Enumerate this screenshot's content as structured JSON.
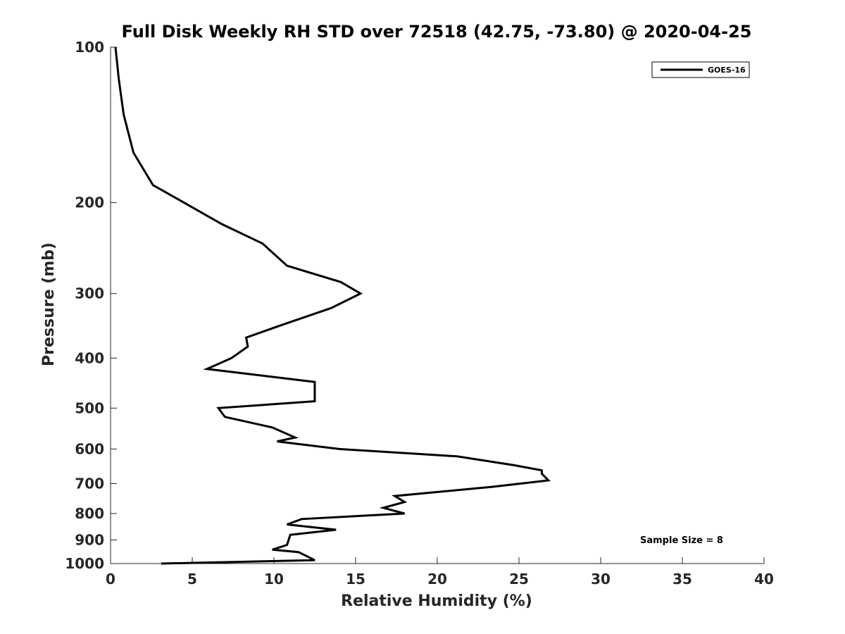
{
  "chart_data": {
    "type": "line",
    "title": "Full Disk Weekly RH STD over 72518 (42.75, -73.80) @ 2020-04-25",
    "xlabel": "Relative Humidity (%)",
    "ylabel": "Pressure (mb)",
    "xlim": [
      0,
      40
    ],
    "ylim": [
      100,
      1000
    ],
    "yscale": "log",
    "reversed_y": true,
    "x_ticks": [
      0,
      5,
      10,
      15,
      20,
      25,
      30,
      35,
      40
    ],
    "y_ticks": [
      100,
      200,
      300,
      400,
      500,
      600,
      700,
      800,
      900,
      1000
    ],
    "grid": false,
    "legend_position": "top-right",
    "annotation": "Sample Size = 8",
    "series": [
      {
        "name": "GOES-16",
        "color": "#000000",
        "points": [
          [
            0.3,
            100
          ],
          [
            0.5,
            115
          ],
          [
            0.8,
            135
          ],
          [
            1.4,
            160
          ],
          [
            2.6,
            185
          ],
          [
            4.5,
            200
          ],
          [
            6.8,
            220
          ],
          [
            9.3,
            240
          ],
          [
            10.8,
            265
          ],
          [
            14.1,
            285
          ],
          [
            15.3,
            300
          ],
          [
            13.5,
            320
          ],
          [
            10.5,
            345
          ],
          [
            8.3,
            365
          ],
          [
            8.4,
            380
          ],
          [
            7.4,
            400
          ],
          [
            5.9,
            420
          ],
          [
            12.5,
            445
          ],
          [
            12.5,
            465
          ],
          [
            12.5,
            485
          ],
          [
            6.6,
            500
          ],
          [
            7.0,
            520
          ],
          [
            9.9,
            545
          ],
          [
            11.3,
            570
          ],
          [
            10.2,
            580
          ],
          [
            14.0,
            600
          ],
          [
            21.2,
            620
          ],
          [
            24.7,
            645
          ],
          [
            26.4,
            660
          ],
          [
            26.4,
            670
          ],
          [
            26.8,
            690
          ],
          [
            23.4,
            710
          ],
          [
            17.4,
            740
          ],
          [
            18.0,
            760
          ],
          [
            16.7,
            780
          ],
          [
            18.0,
            800
          ],
          [
            11.7,
            820
          ],
          [
            10.8,
            840
          ],
          [
            13.8,
            860
          ],
          [
            11.0,
            880
          ],
          [
            10.8,
            920
          ],
          [
            9.9,
            940
          ],
          [
            11.5,
            950
          ],
          [
            12.5,
            985
          ],
          [
            3.1,
            1000
          ]
        ]
      }
    ]
  }
}
